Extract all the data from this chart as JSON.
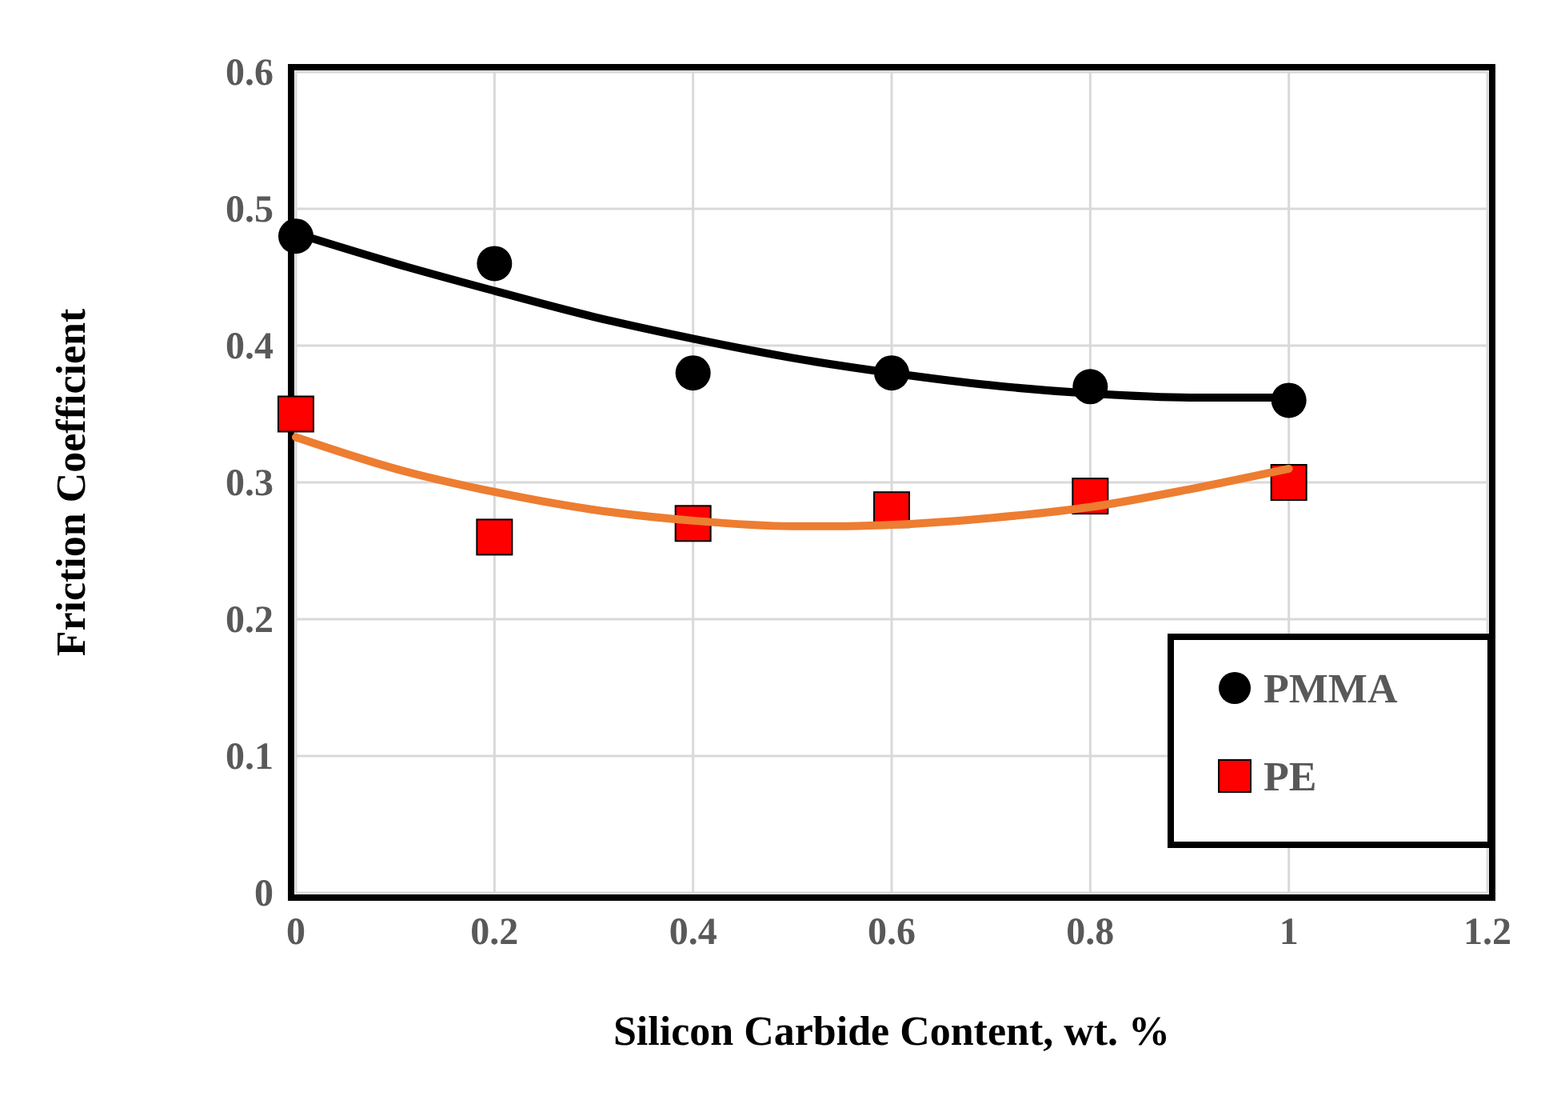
{
  "chart_data": {
    "type": "scatter",
    "xlabel": "Silicon Carbide Content, wt. %",
    "ylabel": "Friction Coefficient",
    "xlim": [
      0,
      1.2
    ],
    "ylim": [
      0,
      0.6
    ],
    "xticks": [
      0,
      0.2,
      0.4,
      0.6,
      0.8,
      1,
      1.2
    ],
    "yticks": [
      0,
      0.1,
      0.2,
      0.3,
      0.4,
      0.5,
      0.6
    ],
    "grid": true,
    "legend": "bottom right",
    "series": [
      {
        "type": "line",
        "color": "#000000",
        "marker": "none",
        "x": [
          0,
          0.1,
          0.2,
          0.3,
          0.4,
          0.5,
          0.6,
          0.7,
          0.8,
          0.9,
          1
        ],
        "values": [
          0.482,
          0.46,
          0.44,
          0.421,
          0.405,
          0.391,
          0.38,
          0.371,
          0.365,
          0.362,
          0.362
        ]
      },
      {
        "type": "line",
        "color": "#ed7d31",
        "marker": "none",
        "x": [
          0,
          0.1,
          0.2,
          0.3,
          0.4,
          0.5,
          0.55,
          0.6,
          0.7,
          0.8,
          0.9,
          1
        ],
        "values": [
          0.333,
          0.31,
          0.293,
          0.28,
          0.272,
          0.268,
          0.268,
          0.269,
          0.274,
          0.282,
          0.295,
          0.31
        ]
      },
      {
        "name": "PMMA",
        "color": "#000000",
        "marker": "circle",
        "x": [
          0,
          0.2,
          0.4,
          0.6,
          0.8,
          1
        ],
        "values": [
          0.48,
          0.46,
          0.38,
          0.38,
          0.37,
          0.36
        ]
      },
      {
        "name": "PE",
        "color": "#ff0000",
        "marker": "square",
        "x": [
          0,
          0.2,
          0.4,
          0.6,
          0.8,
          1
        ],
        "values": [
          0.35,
          0.26,
          0.27,
          0.28,
          0.29,
          0.3
        ]
      }
    ]
  }
}
